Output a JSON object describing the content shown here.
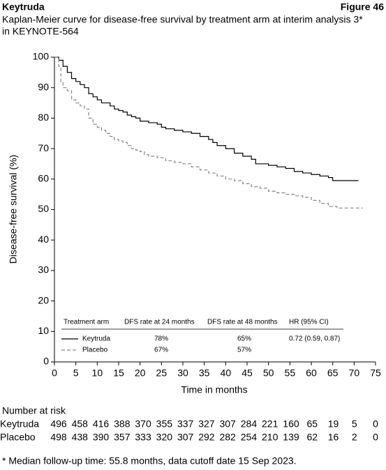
{
  "chart_data": {
    "type": "km",
    "title": "Keytruda",
    "figure_label": "Figure 46",
    "subtitle": [
      "Kaplan-Meier curve for disease-free survival by treatment arm at interim analysis 3*",
      "in KEYNOTE-564"
    ],
    "xlabel": "Time in months",
    "ylabel": "Disease-free survival (%)",
    "xlim": [
      0,
      75
    ],
    "ylim": [
      0,
      100
    ],
    "xticks": [
      0,
      5,
      10,
      15,
      20,
      25,
      30,
      35,
      40,
      45,
      50,
      55,
      60,
      65,
      70,
      75
    ],
    "yticks": [
      0,
      10,
      20,
      30,
      40,
      50,
      60,
      70,
      80,
      90,
      100
    ],
    "series": [
      {
        "name": "Keytruda",
        "color": "#000000",
        "line_style": "solid",
        "x": [
          0,
          1,
          2,
          3,
          4,
          5,
          6,
          7,
          8,
          9,
          10,
          11,
          13,
          14,
          15,
          16,
          17,
          18,
          19,
          20,
          22,
          24,
          25,
          26,
          28,
          30,
          32,
          34,
          36,
          37,
          38,
          40,
          42,
          44,
          46,
          47,
          50,
          52,
          54,
          56,
          58,
          60,
          62,
          64,
          65,
          71
        ],
        "values": [
          100,
          99,
          97,
          95,
          93,
          92,
          91,
          90,
          88,
          87,
          86,
          85,
          84,
          83,
          82.5,
          82,
          81,
          80.5,
          80,
          79,
          78.5,
          78,
          77,
          76.5,
          76,
          75.5,
          75,
          74,
          73,
          72,
          71,
          70,
          68.5,
          67.5,
          66.5,
          65,
          64.5,
          64,
          63.5,
          62.5,
          62,
          61.5,
          61,
          60.5,
          59.5,
          59.5
        ]
      },
      {
        "name": "Placebo",
        "color": "#888888",
        "line_style": "dashed",
        "x": [
          0,
          1,
          1.5,
          2,
          3,
          4,
          5,
          6,
          7,
          8,
          9,
          10,
          11,
          12,
          13,
          14,
          15,
          16,
          17,
          18,
          19,
          20,
          21,
          22,
          24,
          26,
          28,
          30,
          32,
          34,
          36,
          38,
          40,
          42,
          44,
          46,
          48,
          50,
          52,
          54,
          56,
          58,
          60,
          62,
          64,
          66,
          72
        ],
        "values": [
          100,
          97,
          92,
          90,
          89,
          86,
          85,
          84,
          83,
          80,
          78,
          77,
          76,
          75,
          74,
          73,
          72.5,
          72,
          71,
          70,
          69.5,
          69,
          68,
          67.5,
          67,
          66,
          65.5,
          65,
          64,
          63,
          62,
          61,
          60,
          59.5,
          58.5,
          57.5,
          57,
          56,
          55.5,
          55,
          54.5,
          54,
          53,
          52,
          51,
          50.5,
          50.5
        ]
      }
    ],
    "legend_table": {
      "header": [
        "Treatment arm",
        "DFS rate at 24 months",
        "DFS rate at 48 months",
        "HR (95% CI)"
      ],
      "rows": [
        [
          "Keytruda",
          "78%",
          "65%",
          "0.72 (0.59, 0.87)"
        ],
        [
          "Placebo",
          "67%",
          "57%"
        ]
      ]
    },
    "risk_table": {
      "title": "Number at risk",
      "rows": [
        {
          "name": "Keytruda",
          "values": [
            496,
            458,
            416,
            388,
            370,
            355,
            337,
            327,
            307,
            284,
            221,
            160,
            65,
            19,
            5,
            0
          ]
        },
        {
          "name": "Placebo",
          "values": [
            498,
            438,
            390,
            357,
            333,
            320,
            307,
            292,
            282,
            254,
            210,
            139,
            62,
            16,
            2,
            0
          ]
        }
      ]
    },
    "footnote": "* Median follow-up time: 55.8 months, data cutoff date 15 Sep 2023."
  }
}
